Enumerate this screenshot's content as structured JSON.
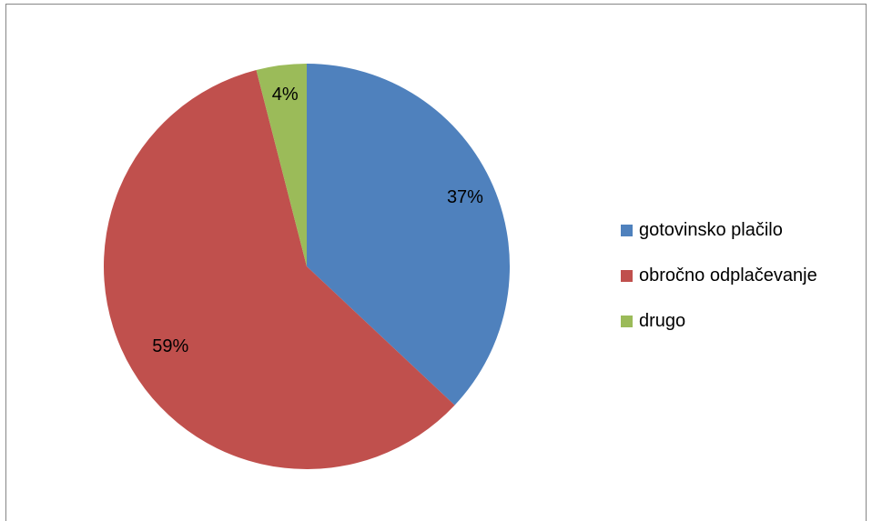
{
  "chart_data": {
    "type": "pie",
    "categories": [
      "gotovinsko plačilo",
      "obročno odplačevanje",
      "drugo"
    ],
    "values": [
      37,
      59,
      4
    ],
    "labels": [
      "37%",
      "59%",
      "4%"
    ],
    "colors": [
      "#4F81BD",
      "#C0504D",
      "#9BBB59"
    ],
    "legend_position": "right"
  }
}
